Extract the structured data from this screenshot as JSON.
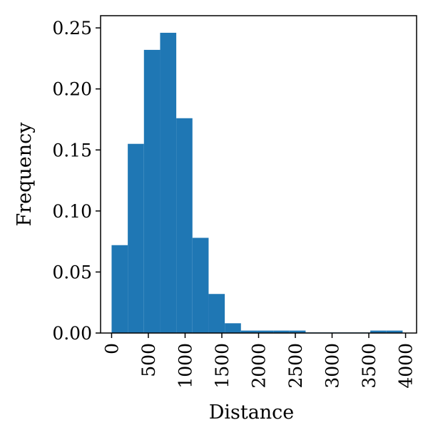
{
  "chart_data": {
    "type": "bar",
    "subtype": "histogram",
    "xlabel": "Distance",
    "ylabel": "Frequency",
    "xlim": [
      -150,
      4150
    ],
    "ylim": [
      0,
      0.26
    ],
    "x_ticks": [
      0,
      500,
      1000,
      1500,
      2000,
      2500,
      3000,
      3500,
      4000
    ],
    "x_tick_labels": [
      "0",
      "500",
      "1000",
      "1500",
      "2000",
      "2500",
      "3000",
      "3500",
      "4000"
    ],
    "y_ticks": [
      0.0,
      0.05,
      0.1,
      0.15,
      0.2,
      0.25
    ],
    "y_tick_labels": [
      "0.00",
      "0.05",
      "0.10",
      "0.15",
      "0.20",
      "0.25"
    ],
    "bin_edges": [
      0,
      220,
      440,
      660,
      880,
      1100,
      1320,
      1540,
      1760,
      1980,
      2200,
      2420,
      2640,
      2860,
      3080,
      3300,
      3520,
      3740,
      3960
    ],
    "values": [
      0.072,
      0.155,
      0.232,
      0.246,
      0.176,
      0.078,
      0.032,
      0.008,
      0.002,
      0.002,
      0.002,
      0.002,
      0.0005,
      0.0005,
      0.0005,
      0.0005,
      0.002,
      0.002
    ],
    "bar_color": "#1f77b4",
    "grid": false,
    "legend": "none"
  }
}
